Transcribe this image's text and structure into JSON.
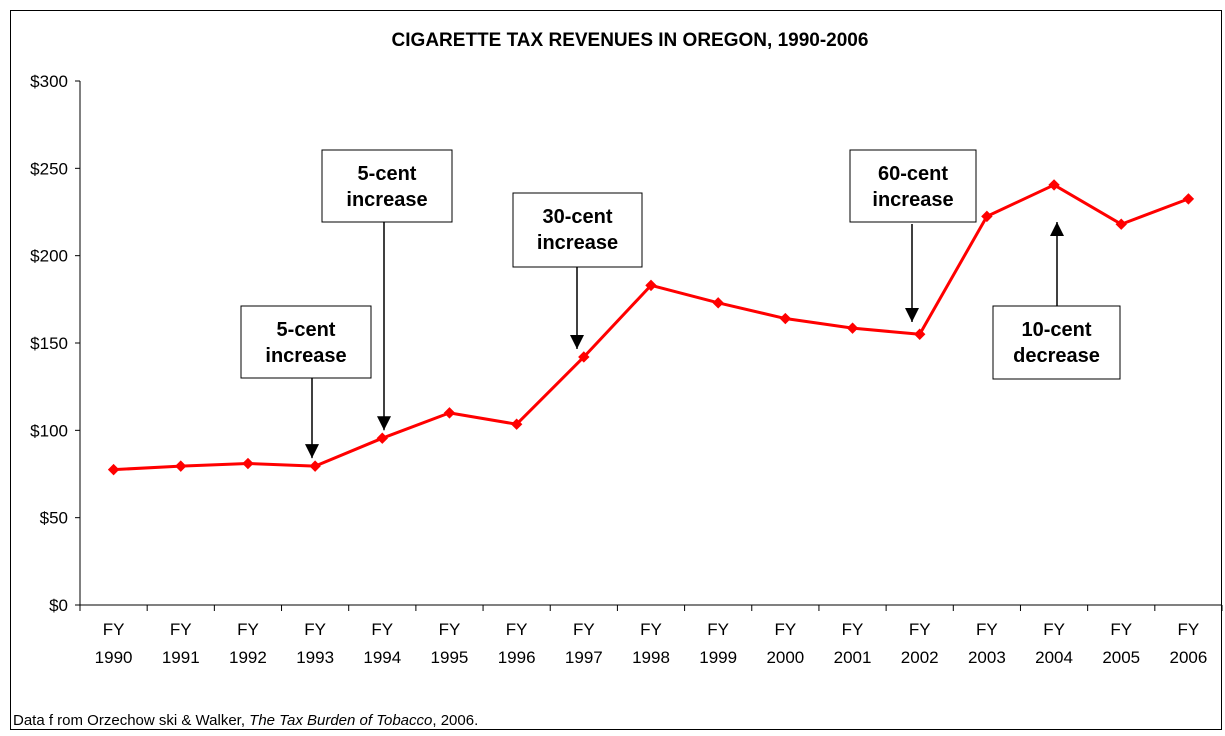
{
  "chart_data": {
    "type": "line",
    "title": "CIGARETTE TAX REVENUES IN OREGON, 1990-2006",
    "xlabel": "",
    "ylabel": "",
    "categories": [
      [
        "FY",
        "1990"
      ],
      [
        "FY",
        "1991"
      ],
      [
        "FY",
        "1992"
      ],
      [
        "FY",
        "1993"
      ],
      [
        "FY",
        "1994"
      ],
      [
        "FY",
        "1995"
      ],
      [
        "FY",
        "1996"
      ],
      [
        "FY",
        "1997"
      ],
      [
        "FY",
        "1998"
      ],
      [
        "FY",
        "1999"
      ],
      [
        "FY",
        "2000"
      ],
      [
        "FY",
        "2001"
      ],
      [
        "FY",
        "2002"
      ],
      [
        "FY",
        "2003"
      ],
      [
        "FY",
        "2004"
      ],
      [
        "FY",
        "2005"
      ],
      [
        "FY",
        "2006"
      ]
    ],
    "series": [
      {
        "values": [
          77.5,
          79.5,
          81,
          79.5,
          95.5,
          110,
          103.5,
          142,
          183,
          173,
          164,
          158.5,
          155,
          222.5,
          240.5,
          218,
          232.5
        ],
        "color": "#ff0000",
        "marker": "diamond"
      }
    ],
    "ylim": [
      0,
      300
    ],
    "yticks": [
      0,
      50,
      100,
      150,
      200,
      250,
      300
    ],
    "ytick_labels": [
      "$0",
      "$50",
      "$100",
      "$150",
      "$200",
      "$250",
      "$300"
    ],
    "grid": false,
    "legend": "none",
    "annotations": [
      {
        "lines": [
          "5-cent",
          "increase"
        ],
        "target_index": 3,
        "arrow": "down"
      },
      {
        "lines": [
          "5-cent",
          "increase"
        ],
        "target_index": 4,
        "arrow": "down"
      },
      {
        "lines": [
          "30-cent",
          "increase"
        ],
        "target_index": 7,
        "arrow": "down"
      },
      {
        "lines": [
          "60-cent",
          "increase"
        ],
        "target_index": 12,
        "arrow": "down"
      },
      {
        "lines": [
          "10-cent",
          "decrease"
        ],
        "target_index": 14,
        "arrow": "up"
      }
    ]
  },
  "source": {
    "prefix": "Data f rom Orzechow ski & Walker, ",
    "italic": "The Tax Burden of Tobacco",
    "suffix": ", 2006."
  }
}
